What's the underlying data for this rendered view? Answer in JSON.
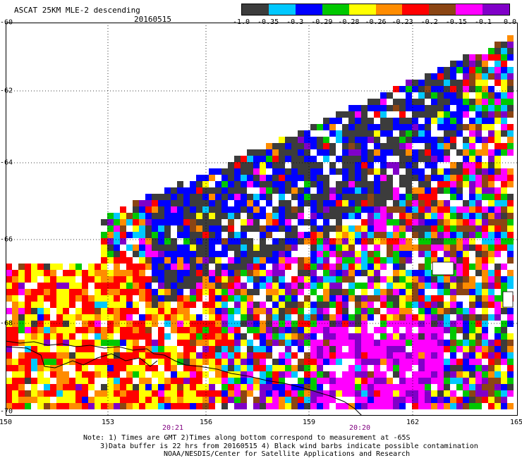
{
  "header": {
    "title": "ASCAT 25KM MLE-2 descending",
    "date": "20160515"
  },
  "colorbar": {
    "colors": [
      "#3c3c3c",
      "#00c8ff",
      "#0000ff",
      "#00c800",
      "#ffff00",
      "#ff8c00",
      "#ff0000",
      "#8b4513",
      "#ff00ff",
      "#8000c8"
    ],
    "labels": [
      "-1.0",
      "-0.35",
      "-0.3",
      "-0.29",
      "-0.28",
      "-0.26",
      "-0.23",
      "-0.2",
      "-0.15",
      "-0.1",
      "0.0"
    ]
  },
  "axes": {
    "lat_labels": [
      "-60",
      "-62",
      "-64",
      "-66",
      "-68",
      "-70"
    ],
    "lon_labels": [
      "150",
      "153",
      "156",
      "159",
      "162",
      "165"
    ]
  },
  "times": [
    "20:21",
    "20:20"
  ],
  "notes": {
    "line1": "Note: 1) Times are GMT 2)Times along bottom correspond to measurement at -65S",
    "line2": "3)Data buffer is 22 hrs from 20160515 4) Black wind barbs indicate possible contamination",
    "line3": "NOAA/NESDIS/Center for Satellite Applications and Research"
  }
}
